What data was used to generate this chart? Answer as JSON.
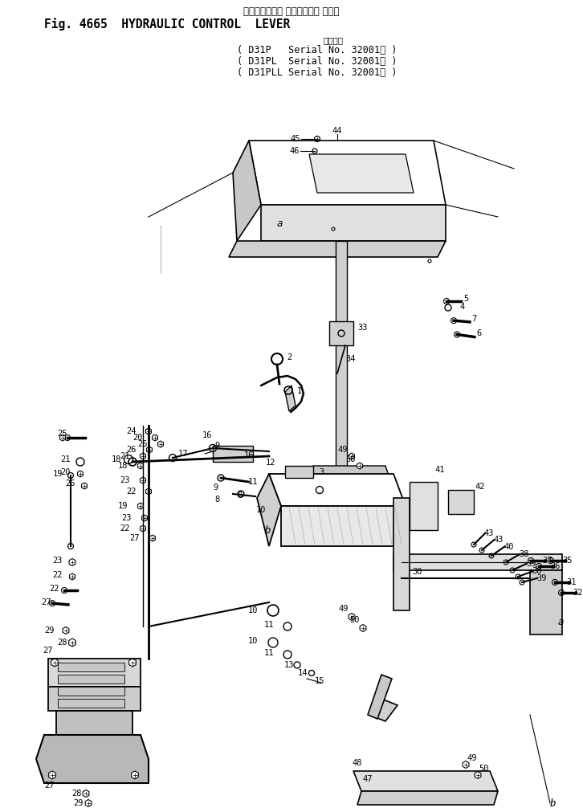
{
  "title_japanese": "ハイドロリック コントロール レバー",
  "title_english": "Fig. 4665  HYDRAULIC CONTROL  LEVER",
  "subtitle_header": "適用号機",
  "serial_lines": [
    "( D31P   Serial No. 32001～ )",
    "( D31PL  Serial No. 32001～ )",
    "( D31PLL Serial No. 32001～ )"
  ],
  "bg_color": "#ffffff",
  "fg_color": "#000000",
  "fig_width": 7.26,
  "fig_height": 10.11
}
